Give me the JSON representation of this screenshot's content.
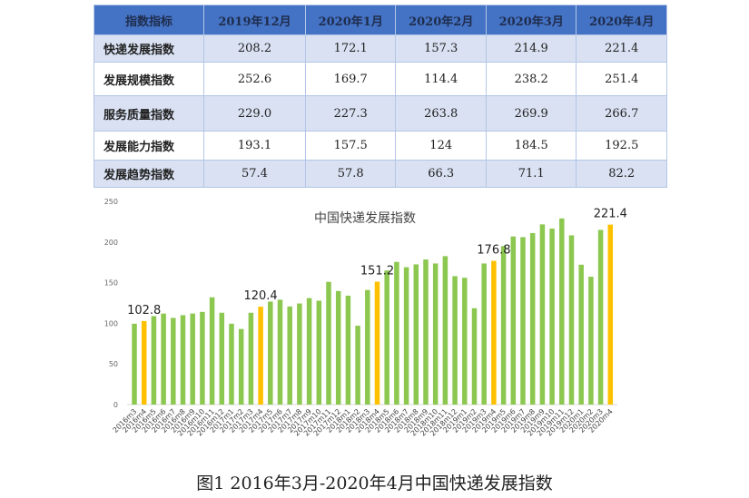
{
  "table": {
    "headers": [
      "指数指标",
      "2019年12月",
      "2020年1月",
      "2020年2月",
      "2020年3月",
      "2020年4月"
    ],
    "rows": [
      {
        "label": "快递发展指数",
        "values": [
          "208.2",
          "172.1",
          "157.3",
          "214.9",
          "221.4"
        ]
      },
      {
        "label": "发展规模指数",
        "values": [
          "252.6",
          "169.7",
          "114.4",
          "238.2",
          "251.4"
        ]
      },
      {
        "label": "服务质量指数",
        "values": [
          "229.0",
          "227.3",
          "263.8",
          "269.9",
          "266.7"
        ]
      },
      {
        "label": "发展能力指数",
        "values": [
          "193.1",
          "157.5",
          "124",
          "184.5",
          "192.5"
        ]
      },
      {
        "label": "发展趋势指数",
        "values": [
          "57.4",
          "57.8",
          "66.3",
          "71.1",
          "82.2"
        ]
      }
    ]
  },
  "chart_data": {
    "type": "bar",
    "title": "中国快递发展指数",
    "ylim": [
      0,
      250
    ],
    "yticks": [
      0,
      50,
      100,
      150,
      200,
      250
    ],
    "grid": false,
    "colors": {
      "default": "#8cc750",
      "highlight": "#ffc000",
      "axis_text": "#666666"
    },
    "categories": [
      "2016m3",
      "2016m4",
      "2016m5",
      "2016m6",
      "2016m7",
      "2016m8",
      "2016m9",
      "2016m10",
      "2016m11",
      "2016m12",
      "2017m1",
      "2017m2",
      "2017m3",
      "2017m4",
      "2017m5",
      "2017m6",
      "2017m7",
      "2017m8",
      "2017m9",
      "2017m10",
      "2017m11",
      "2017m12",
      "2018m1",
      "2018m2",
      "2018m3",
      "2018m4",
      "2018m5",
      "2018m6",
      "2018m7",
      "2018m8",
      "2018m9",
      "2018m10",
      "2018m11",
      "2018m12",
      "2019m1",
      "2019m2",
      "2019m3",
      "2019m4",
      "2019m5",
      "2019m6",
      "2019m7",
      "2019m8",
      "2019m9",
      "2019m10",
      "2019m11",
      "2019m12",
      "2020m1",
      "2020m2",
      "2020m3",
      "2020m4"
    ],
    "values": [
      99.5,
      102.8,
      108.8,
      112,
      106.6,
      110,
      112,
      114,
      132,
      113,
      99.5,
      93,
      113,
      120.4,
      126.7,
      129,
      120.7,
      124.4,
      131,
      127.8,
      151,
      139.7,
      134,
      97,
      141,
      151.2,
      165,
      175.5,
      169,
      172.5,
      178.5,
      173.6,
      182.6,
      158,
      156,
      118.5,
      173.6,
      176.8,
      195,
      206.8,
      206,
      211,
      221.7,
      216.5,
      229,
      208.2,
      172.1,
      157.3,
      214.9,
      221.4
    ],
    "highlighted": [
      "2016m4",
      "2017m4",
      "2018m4",
      "2019m4",
      "2020m4"
    ],
    "data_labels": [
      {
        "category": "2016m4",
        "text": "102.8"
      },
      {
        "category": "2017m4",
        "text": "120.4"
      },
      {
        "category": "2018m4",
        "text": "151.2"
      },
      {
        "category": "2019m4",
        "text": "176.8"
      },
      {
        "category": "2020m4",
        "text": "221.4"
      }
    ]
  },
  "caption": "图1 2016年3月-2020年4月中国快递发展指数"
}
